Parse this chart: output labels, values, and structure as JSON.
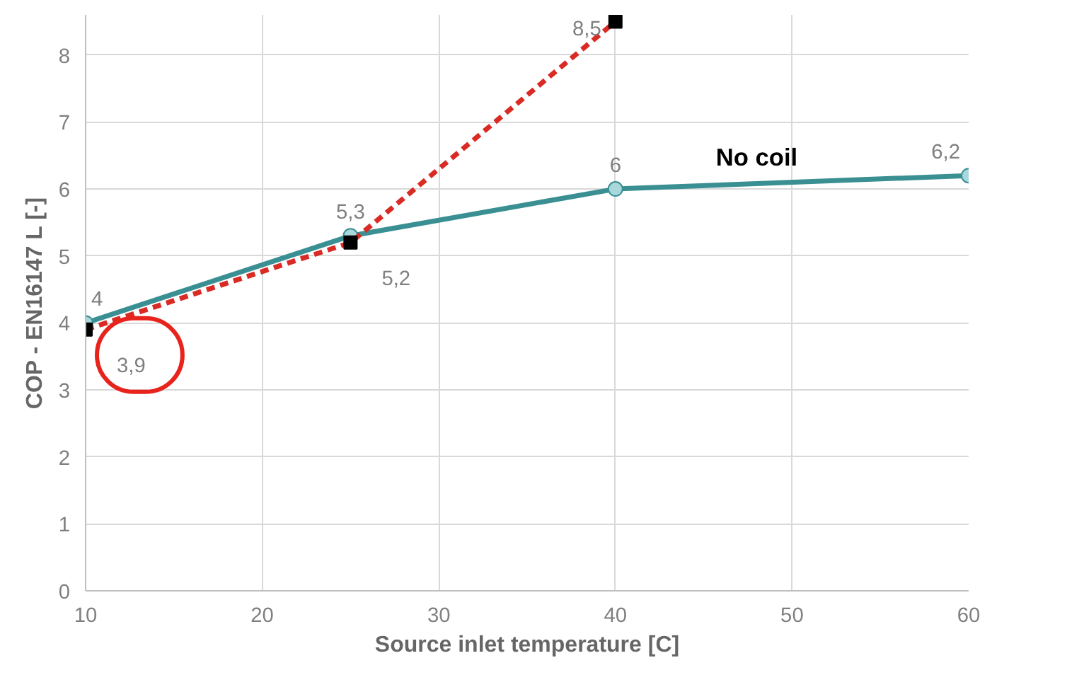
{
  "chart_data": {
    "type": "line",
    "xlabel": "Source inlet temperature [C]",
    "ylabel": "COP - EN16147 L [-]",
    "xlim": [
      10,
      60
    ],
    "xticks": [
      10,
      20,
      30,
      40,
      50,
      60
    ],
    "ylim": [
      0,
      8.6
    ],
    "yticks": [
      0,
      1,
      2,
      3,
      4,
      5,
      6,
      7,
      8
    ],
    "grid": true,
    "series": [
      {
        "name": "No coil",
        "color": "#3a8f92",
        "x": [
          10,
          25,
          40,
          60
        ],
        "values": [
          4,
          5.3,
          6,
          6.2
        ],
        "value_labels": [
          "4",
          "5,3",
          "6",
          "6,2"
        ],
        "marker": "circle",
        "line_style": "solid"
      },
      {
        "color": "#d92a24",
        "x": [
          10,
          25,
          40
        ],
        "values": [
          3.9,
          5.2,
          8.5
        ],
        "value_labels": [
          "3,9",
          "5,2",
          "8,5"
        ],
        "marker": "square",
        "line_style": "dashed"
      }
    ]
  }
}
